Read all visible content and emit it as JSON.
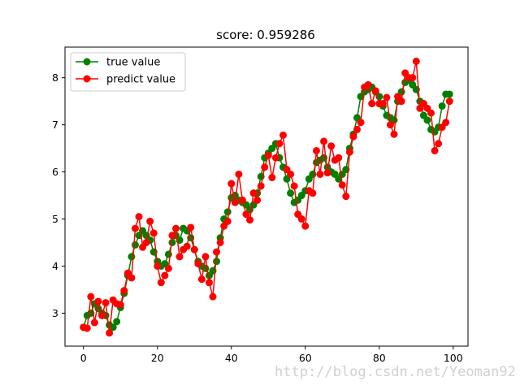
{
  "colors": {
    "true_series": "#008000",
    "predict_series": "#ff0000",
    "axes": "#000000",
    "background": "#ffffff"
  },
  "watermark": "http://blog.csdn.net/Yeoman92",
  "chart_data": {
    "type": "line",
    "title": "score: 0.959286",
    "xlabel": "",
    "ylabel": "",
    "xlim": [
      -5,
      104
    ],
    "ylim": [
      2.3,
      8.65
    ],
    "xticks": [
      0,
      20,
      40,
      60,
      80,
      100
    ],
    "yticks": [
      3,
      4,
      5,
      6,
      7,
      8
    ],
    "grid": false,
    "legend_position": "upper-left",
    "x": [
      0,
      1,
      2,
      3,
      4,
      5,
      6,
      7,
      8,
      9,
      10,
      11,
      12,
      13,
      14,
      15,
      16,
      17,
      18,
      19,
      20,
      21,
      22,
      23,
      24,
      25,
      26,
      27,
      28,
      29,
      30,
      31,
      32,
      33,
      34,
      35,
      36,
      37,
      38,
      39,
      40,
      41,
      42,
      43,
      44,
      45,
      46,
      47,
      48,
      49,
      50,
      51,
      52,
      53,
      54,
      55,
      56,
      57,
      58,
      59,
      60,
      61,
      62,
      63,
      64,
      65,
      66,
      67,
      68,
      69,
      70,
      71,
      72,
      73,
      74,
      75,
      76,
      77,
      78,
      79,
      80,
      81,
      82,
      83,
      84,
      85,
      86,
      87,
      88,
      89,
      90,
      91,
      92,
      93,
      94,
      95,
      96,
      97,
      98,
      99
    ],
    "series": [
      {
        "name": "true value",
        "marker": "circle",
        "values": [
          2.7,
          2.95,
          3.0,
          3.2,
          3.1,
          3.0,
          2.95,
          2.75,
          2.7,
          2.82,
          3.12,
          3.42,
          3.8,
          4.2,
          4.45,
          4.65,
          4.75,
          4.65,
          4.55,
          4.3,
          4.1,
          4.0,
          4.05,
          4.25,
          4.5,
          4.65,
          4.55,
          4.8,
          4.75,
          4.6,
          4.35,
          4.1,
          4.0,
          3.95,
          3.8,
          3.9,
          4.1,
          4.6,
          5.0,
          5.15,
          5.45,
          5.5,
          5.4,
          5.35,
          5.3,
          5.2,
          5.3,
          5.55,
          5.9,
          6.3,
          6.4,
          6.5,
          6.6,
          6.3,
          6.1,
          5.85,
          5.55,
          5.35,
          5.4,
          5.5,
          5.6,
          5.85,
          5.95,
          6.2,
          6.25,
          6.3,
          6.1,
          6.0,
          5.95,
          5.85,
          5.95,
          6.05,
          6.5,
          6.8,
          7.15,
          7.6,
          7.7,
          7.75,
          7.8,
          7.7,
          7.6,
          7.4,
          7.2,
          7.15,
          7.1,
          7.5,
          7.7,
          7.9,
          7.95,
          7.85,
          7.75,
          7.5,
          7.2,
          7.1,
          6.9,
          6.85,
          6.95,
          7.4,
          7.65,
          7.65
        ]
      },
      {
        "name": "predict value",
        "marker": "circle",
        "values": [
          2.7,
          2.68,
          3.35,
          2.8,
          3.25,
          2.95,
          3.22,
          2.58,
          3.28,
          3.2,
          3.18,
          3.48,
          3.85,
          3.75,
          4.8,
          5.05,
          4.4,
          4.5,
          4.95,
          4.7,
          4.0,
          3.65,
          3.8,
          3.95,
          4.65,
          4.8,
          4.2,
          4.35,
          4.42,
          4.82,
          4.35,
          4.05,
          3.72,
          4.2,
          3.65,
          3.35,
          4.3,
          4.5,
          4.85,
          4.95,
          5.75,
          5.35,
          5.95,
          5.4,
          5.1,
          4.98,
          5.55,
          5.4,
          5.7,
          6.1,
          6.35,
          5.88,
          6.3,
          6.6,
          6.78,
          6.05,
          5.95,
          5.7,
          5.1,
          5.0,
          4.85,
          5.6,
          5.55,
          6.45,
          5.95,
          6.65,
          5.98,
          6.55,
          6.25,
          6.3,
          5.72,
          5.48,
          6.42,
          6.75,
          6.9,
          7.05,
          7.8,
          7.85,
          7.45,
          7.72,
          7.45,
          7.45,
          7.58,
          7.0,
          6.8,
          7.6,
          7.5,
          8.1,
          8.0,
          8.0,
          8.35,
          7.35,
          7.45,
          7.35,
          7.25,
          6.45,
          6.6,
          6.95,
          7.05,
          7.5
        ]
      }
    ]
  }
}
